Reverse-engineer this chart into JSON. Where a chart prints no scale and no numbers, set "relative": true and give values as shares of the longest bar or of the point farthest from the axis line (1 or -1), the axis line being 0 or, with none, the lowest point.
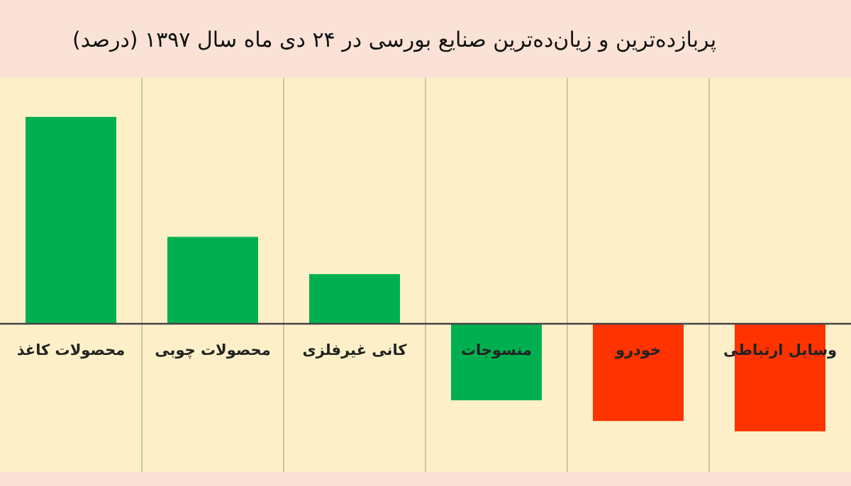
{
  "chart_data": {
    "type": "bar",
    "title": "پربازده‌ترین و زیان‌ده‌ترین صنایع بورسی در ۲۴ دی ماه سال ۱۳۹۷ (درصد)",
    "categories": [
      "محصولات کاغذ",
      "محصولات چوبی",
      "کانی غیرفلزی",
      "منسوجات",
      "خودرو",
      "وسایل ارتباطی"
    ],
    "values": [
      1,
      0.42,
      0.24,
      -0.37,
      -0.47,
      -0.52
    ],
    "colors": [
      "#00b050",
      "#00b050",
      "#00b050",
      "#00b050",
      "#ff3300",
      "#ff3300"
    ],
    "relative": true,
    "grid": true
  }
}
